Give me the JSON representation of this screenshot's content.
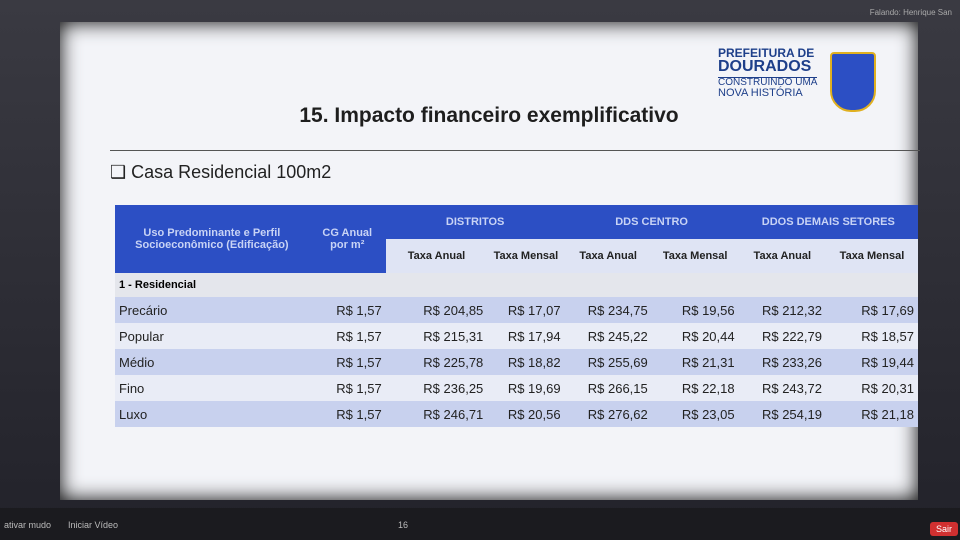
{
  "zoom": {
    "speaker": "Falando: Henrique San",
    "toolbar": [
      "ativar mudo",
      "Iniciar Vídeo",
      "16",
      "Sair"
    ]
  },
  "logo": {
    "line1": "PREFEITURA DE",
    "line2": "DOURADOS",
    "line3": "CONSTRUINDO UMA",
    "line4": "NOVA HISTÓRIA"
  },
  "slide": {
    "title": "15. Impacto financeiro exemplificativo",
    "subtitle": "❑ Casa Residencial 100m2"
  },
  "table": {
    "head": {
      "use": "Uso Predominante e Perfil Socioeconômico (Edificação)",
      "cg": "CG Anual por m²",
      "groups": [
        "DISTRITOS",
        "DDS CENTRO",
        "DDOS DEMAIS SETORES"
      ],
      "sub": [
        "Taxa Anual",
        "Taxa Mensal",
        "Taxa Anual",
        "Taxa Mensal",
        "Taxa Anual",
        "Taxa Mensal"
      ]
    },
    "section": "1 - Residencial",
    "rows": [
      [
        "Precário",
        "R$ 1,57",
        "R$ 204,85",
        "R$ 17,07",
        "R$ 234,75",
        "R$ 19,56",
        "R$ 212,32",
        "R$ 17,69"
      ],
      [
        "Popular",
        "R$ 1,57",
        "R$ 215,31",
        "R$ 17,94",
        "R$ 245,22",
        "R$ 20,44",
        "R$ 222,79",
        "R$ 18,57"
      ],
      [
        "Médio",
        "R$ 1,57",
        "R$ 225,78",
        "R$ 18,82",
        "R$ 255,69",
        "R$ 21,31",
        "R$ 233,26",
        "R$ 19,44"
      ],
      [
        "Fino",
        "R$ 1,57",
        "R$ 236,25",
        "R$ 19,69",
        "R$ 266,15",
        "R$ 22,18",
        "R$ 243,72",
        "R$ 20,31"
      ],
      [
        "Luxo",
        "R$ 1,57",
        "R$ 246,71",
        "R$ 20,56",
        "R$ 276,62",
        "R$ 23,05",
        "R$ 254,19",
        "R$ 21,18"
      ]
    ]
  }
}
